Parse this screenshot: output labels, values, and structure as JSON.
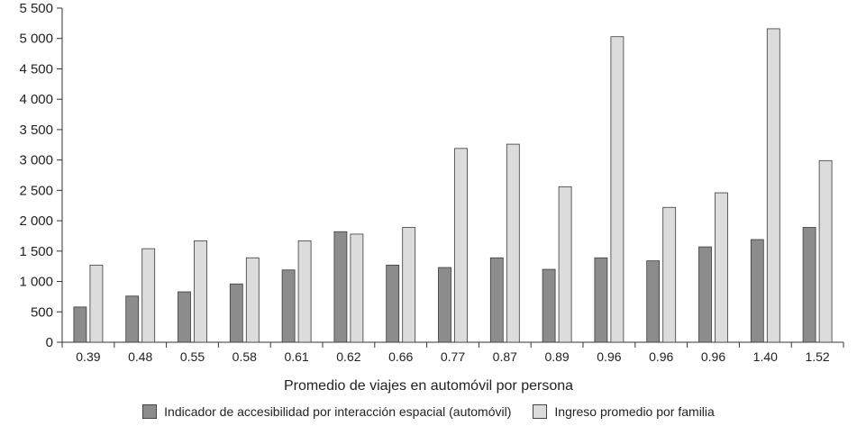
{
  "chart_data": {
    "type": "bar",
    "xlabel": "Promedio de viajes en automóvil por persona",
    "ylabel": "",
    "ylim": [
      0,
      5500
    ],
    "yticks": [
      "0",
      "500",
      "1 000",
      "1 500",
      "2 000",
      "2 500",
      "3 000",
      "3 500",
      "4 000",
      "4 500",
      "5 000",
      "5 500"
    ],
    "categories": [
      "0.39",
      "0.48",
      "0.55",
      "0.58",
      "0.61",
      "0.62",
      "0.66",
      "0.77",
      "0.87",
      "0.89",
      "0.96",
      "0.96",
      "0.96",
      "1.40",
      "1.52"
    ],
    "series": [
      {
        "name": "Indicador de accesibilidad por interacción espacial (automóvil)",
        "color": "#8c8c8c",
        "values": [
          580,
          760,
          830,
          960,
          1190,
          1820,
          1270,
          1230,
          1390,
          1200,
          1390,
          1340,
          1570,
          1690,
          1890
        ]
      },
      {
        "name": "Ingreso promedio por familia",
        "color": "#dcdcdc",
        "values": [
          1270,
          1540,
          1670,
          1390,
          1670,
          1780,
          1890,
          3190,
          3260,
          2560,
          5030,
          2220,
          2460,
          5160,
          2990
        ]
      }
    ],
    "grid": false,
    "legend_position": "bottom"
  }
}
